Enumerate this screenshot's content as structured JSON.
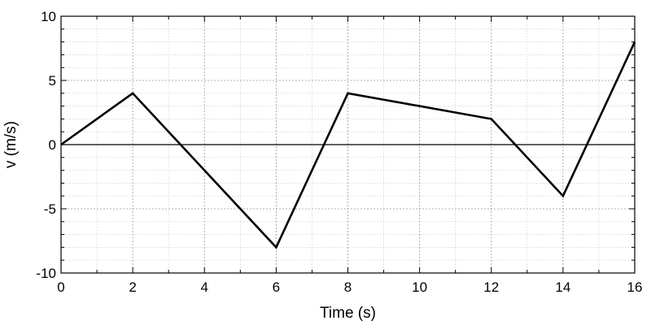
{
  "chart_data": {
    "type": "line",
    "xlabel": "Time (s)",
    "ylabel": "v (m/s)",
    "xlim": [
      0,
      16
    ],
    "ylim": [
      -10,
      10
    ],
    "x_ticks": [
      0,
      2,
      4,
      6,
      8,
      10,
      12,
      14,
      16
    ],
    "y_ticks": [
      -10,
      -5,
      0,
      5,
      10
    ],
    "x_minor_step": 1,
    "y_minor_step": 1,
    "grid": true,
    "zero_line": true,
    "series": [
      {
        "color": "#000000",
        "x": [
          0,
          2,
          6,
          8,
          12,
          14,
          16
        ],
        "y": [
          0,
          4,
          -8,
          4,
          2,
          -4,
          8
        ]
      }
    ]
  }
}
